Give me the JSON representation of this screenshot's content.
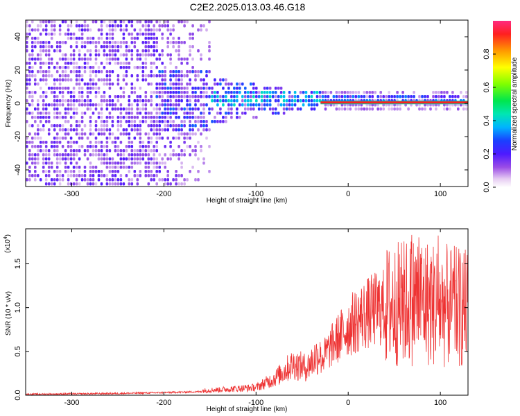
{
  "title": "C2E2.2025.013.03.46.G18",
  "chart_data": [
    {
      "type": "heatmap",
      "xlabel": "Height of straight line (km)",
      "ylabel": "Frequency (Hz)",
      "xlim": [
        -350,
        130
      ],
      "ylim": [
        -50,
        50
      ],
      "xticks": [
        -300,
        -200,
        -100,
        0,
        100
      ],
      "yticks": [
        -40,
        -20,
        0,
        20,
        40
      ],
      "colorbar": {
        "label": "Normalized spectral amplitude",
        "range": [
          0,
          1
        ],
        "ticks": [
          0.0,
          0.2,
          0.4,
          0.6,
          0.8
        ]
      },
      "features": {
        "noise_region_x": [
          -350,
          -150
        ],
        "signal_start_x": -150,
        "tracking_line_start_x": -30,
        "tracking_line_freq": 0.5,
        "tracking_line_amplitude": 1.0
      }
    },
    {
      "type": "line",
      "xlabel": "Height of straight line (km)",
      "ylabel": "SNR (10 * v/v)",
      "y_scale_note": "(x10",
      "y_scale_exp": "4",
      "xlim": [
        -350,
        130
      ],
      "ylim": [
        0,
        1.9
      ],
      "xticks": [
        -300,
        -200,
        -100,
        0,
        100
      ],
      "yticks": [
        0.0,
        0.5,
        1.0,
        1.5
      ],
      "color": "#ee3333",
      "envelope": [
        {
          "x": -350,
          "y": 0.01
        },
        {
          "x": -250,
          "y": 0.02
        },
        {
          "x": -200,
          "y": 0.03
        },
        {
          "x": -160,
          "y": 0.04
        },
        {
          "x": -120,
          "y": 0.06
        },
        {
          "x": -100,
          "y": 0.07
        },
        {
          "x": -80,
          "y": 0.15
        },
        {
          "x": -60,
          "y": 0.28
        },
        {
          "x": -45,
          "y": 0.25
        },
        {
          "x": -30,
          "y": 0.4
        },
        {
          "x": -15,
          "y": 0.6
        },
        {
          "x": 0,
          "y": 0.78
        },
        {
          "x": 15,
          "y": 0.9
        },
        {
          "x": 30,
          "y": 0.98
        },
        {
          "x": 45,
          "y": 1.02
        },
        {
          "x": 60,
          "y": 1.05
        },
        {
          "x": 75,
          "y": 1.1
        },
        {
          "x": 90,
          "y": 1.05
        },
        {
          "x": 105,
          "y": 1.02
        },
        {
          "x": 120,
          "y": 1.0
        },
        {
          "x": 130,
          "y": 0.98
        }
      ]
    }
  ]
}
